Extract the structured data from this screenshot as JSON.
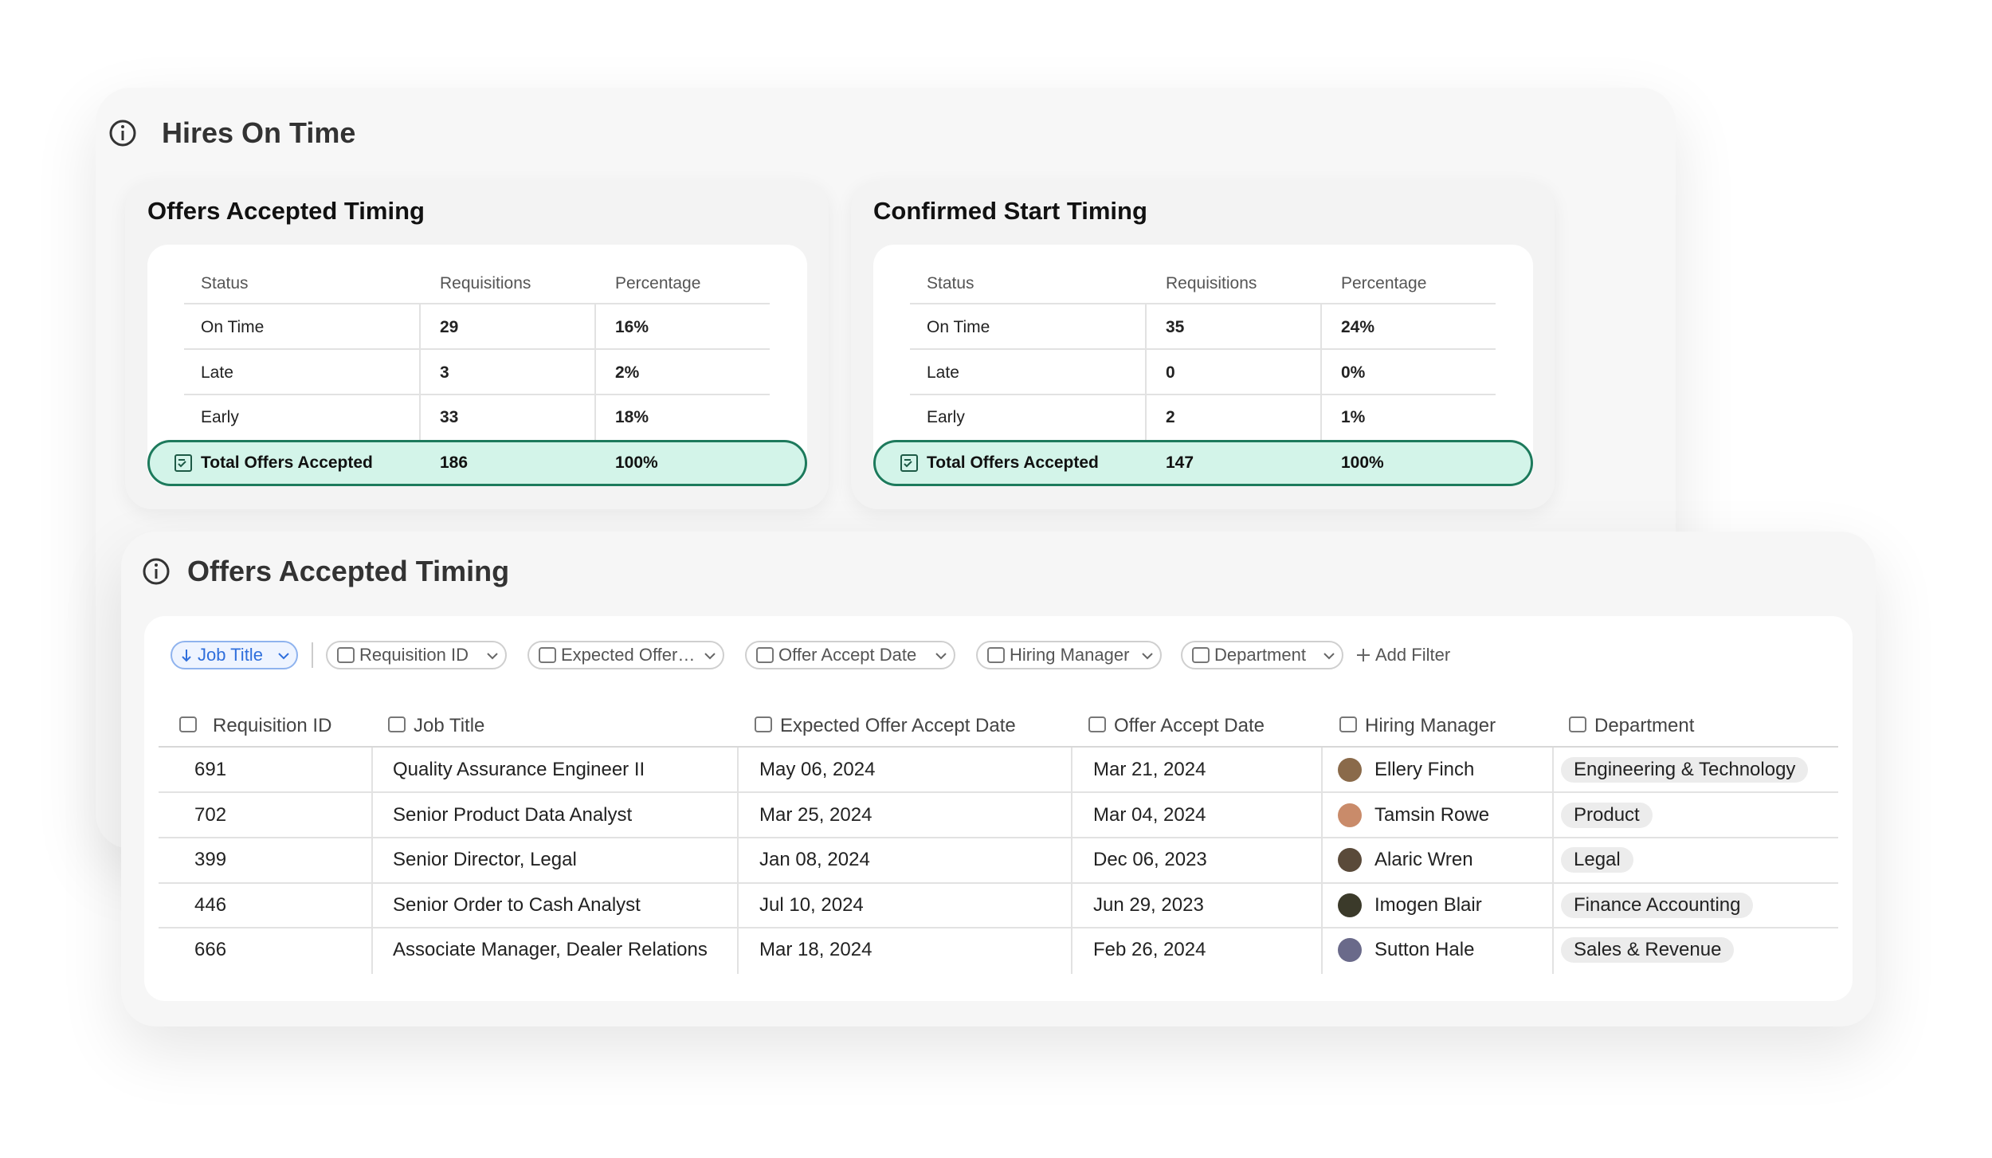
{
  "panel1": {
    "title": "Hires On Time",
    "cards": [
      {
        "title": "Offers Accepted Timing",
        "headers": [
          "Status",
          "Requisitions",
          "Percentage"
        ],
        "rows": [
          [
            "On Time",
            "29",
            "16%"
          ],
          [
            "Late",
            "3",
            "2%"
          ],
          [
            "Early",
            "33",
            "18%"
          ]
        ],
        "total": [
          "Total Offers Accepted",
          "186",
          "100%"
        ]
      },
      {
        "title": "Confirmed Start Timing",
        "headers": [
          "Status",
          "Requisitions",
          "Percentage"
        ],
        "rows": [
          [
            "On Time",
            "35",
            "24%"
          ],
          [
            "Late",
            "0",
            "0%"
          ],
          [
            "Early",
            "2",
            "1%"
          ]
        ],
        "total": [
          "Total Offers Accepted",
          "147",
          "100%"
        ]
      }
    ]
  },
  "panel2": {
    "title": "Offers Accepted Timing",
    "filters": [
      "Job Title",
      "Requisition ID",
      "Expected Offer…",
      "Offer Accept Date",
      "Hiring Manager",
      "Department"
    ],
    "add_filter": "Add Filter",
    "columns": [
      "Requisition ID",
      "Job Title",
      "Expected Offer Accept Date",
      "Offer Accept Date",
      "Hiring Manager",
      "Department"
    ],
    "rows": [
      [
        "691",
        "Quality Assurance Engineer II",
        "May 06, 2024",
        "Mar 21, 2024",
        "Ellery Finch",
        "Engineering & Technology"
      ],
      [
        "702",
        "Senior Product Data Analyst",
        "Mar 25, 2024",
        "Mar 04, 2024",
        "Tamsin Rowe",
        "Product"
      ],
      [
        "399",
        "Senior Director, Legal",
        "Jan 08, 2024",
        "Dec 06, 2023",
        "Alaric Wren",
        "Legal"
      ],
      [
        "446",
        "Senior Order to Cash Analyst",
        "Jul 10, 2024",
        "Jun 29, 2023",
        "Imogen Blair",
        "Finance Accounting"
      ],
      [
        "666",
        "Associate Manager, Dealer Relations",
        "Mar 18, 2024",
        "Feb 26, 2024",
        "Sutton Hale",
        "Sales & Revenue"
      ]
    ]
  }
}
